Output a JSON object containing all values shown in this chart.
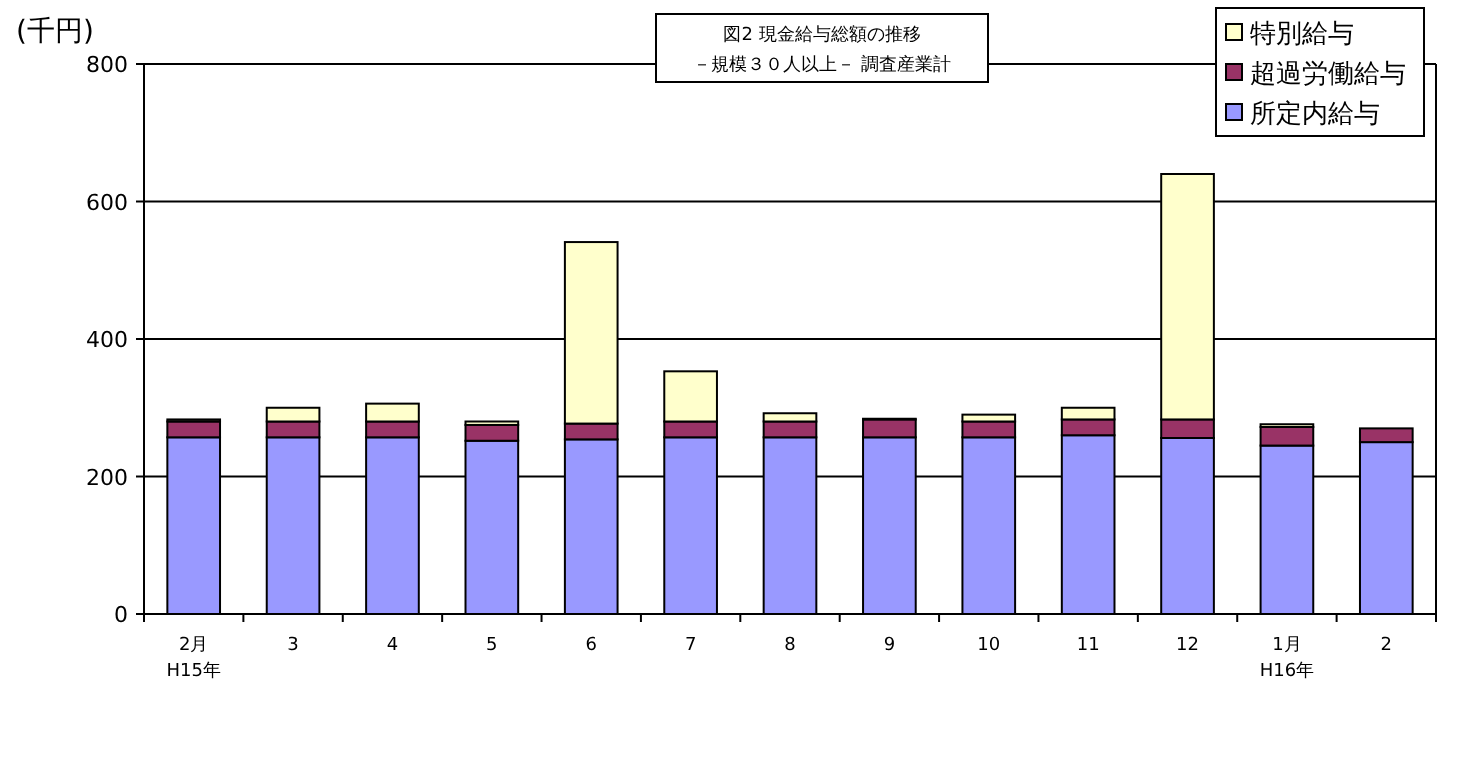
{
  "chart_data": {
    "type": "bar",
    "stacked": true,
    "title": "図2  現金給与総額の推移",
    "subtitle": "－規模３０人以上－  調査産業計",
    "ylabel": "(千円)",
    "categories": [
      "2月\nH15年",
      "3",
      "4",
      "5",
      "6",
      "7",
      "8",
      "9",
      "10",
      "11",
      "12",
      "1月\nH16年",
      "2"
    ],
    "series": [
      {
        "name": "所定内給与",
        "color": "#9999ff",
        "values": [
          257,
          257,
          257,
          252,
          254,
          257,
          257,
          257,
          257,
          260,
          256,
          245,
          250
        ]
      },
      {
        "name": "超過労働給与",
        "color": "#993366",
        "values": [
          23,
          23,
          23,
          23,
          23,
          23,
          23,
          26,
          23,
          23,
          27,
          27,
          20
        ]
      },
      {
        "name": "特別給与",
        "color": "#ffffcc",
        "values": [
          3,
          20,
          26,
          5,
          264,
          73,
          12,
          1,
          10,
          17,
          357,
          4,
          null
        ]
      }
    ],
    "ylim": [
      0,
      800
    ],
    "yticks": [
      0,
      200,
      400,
      600,
      800
    ],
    "grid": "y",
    "legend": "top right"
  }
}
